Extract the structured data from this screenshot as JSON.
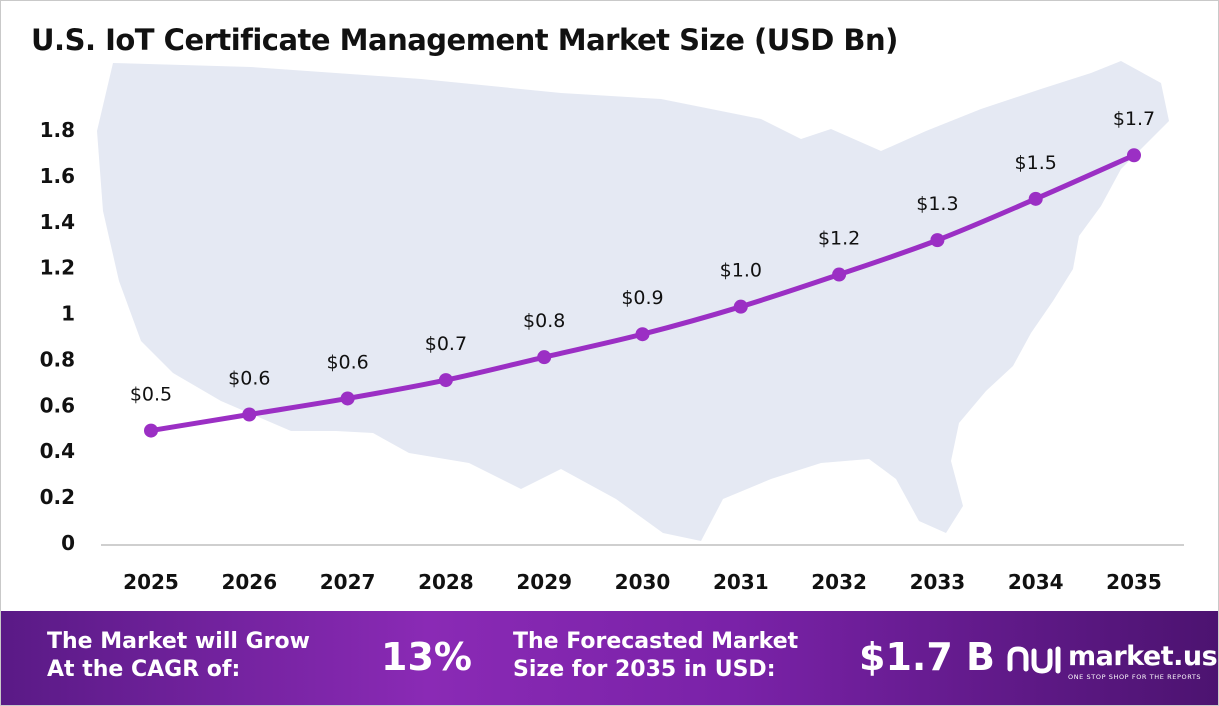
{
  "title": "U.S. IoT Certificate Management Market Size (USD Bn)",
  "colors": {
    "line": "#9b2fc4",
    "map": "#e5e9f3",
    "footer_start": "#5a1a86",
    "footer_end": "#4c1370"
  },
  "chart_data": {
    "type": "line",
    "title": "U.S. IoT Certificate Management Market Size (USD Bn)",
    "xlabel": "",
    "ylabel": "",
    "categories": [
      "2025",
      "2026",
      "2027",
      "2028",
      "2029",
      "2030",
      "2031",
      "2032",
      "2033",
      "2034",
      "2035"
    ],
    "values": [
      0.49,
      0.56,
      0.63,
      0.71,
      0.81,
      0.91,
      1.03,
      1.17,
      1.32,
      1.5,
      1.69
    ],
    "data_labels": [
      "$0.5",
      "$0.6",
      "$0.6",
      "$0.7",
      "$0.8",
      "$0.9",
      "$1.0",
      "$1.2",
      "$1.3",
      "$1.5",
      "$1.7"
    ],
    "y_ticks": [
      "0",
      "0.2",
      "0.4",
      "0.6",
      "0.8",
      "1",
      "1.2",
      "1.4",
      "1.6",
      "1.8"
    ],
    "ylim": [
      0,
      1.8
    ],
    "grid": false,
    "legend": "none"
  },
  "footer": {
    "cagr_line1": "The Market will Grow",
    "cagr_line2": "At the CAGR of:",
    "cagr_value": "13%",
    "forecast_line1": "The Forecasted Market",
    "forecast_line2": "Size for 2035 in USD:",
    "forecast_value": "$1.7 B"
  },
  "logo": {
    "name": "market.us",
    "tagline": "ONE STOP SHOP FOR THE REPORTS",
    "icon": "market-us-logo-icon"
  }
}
